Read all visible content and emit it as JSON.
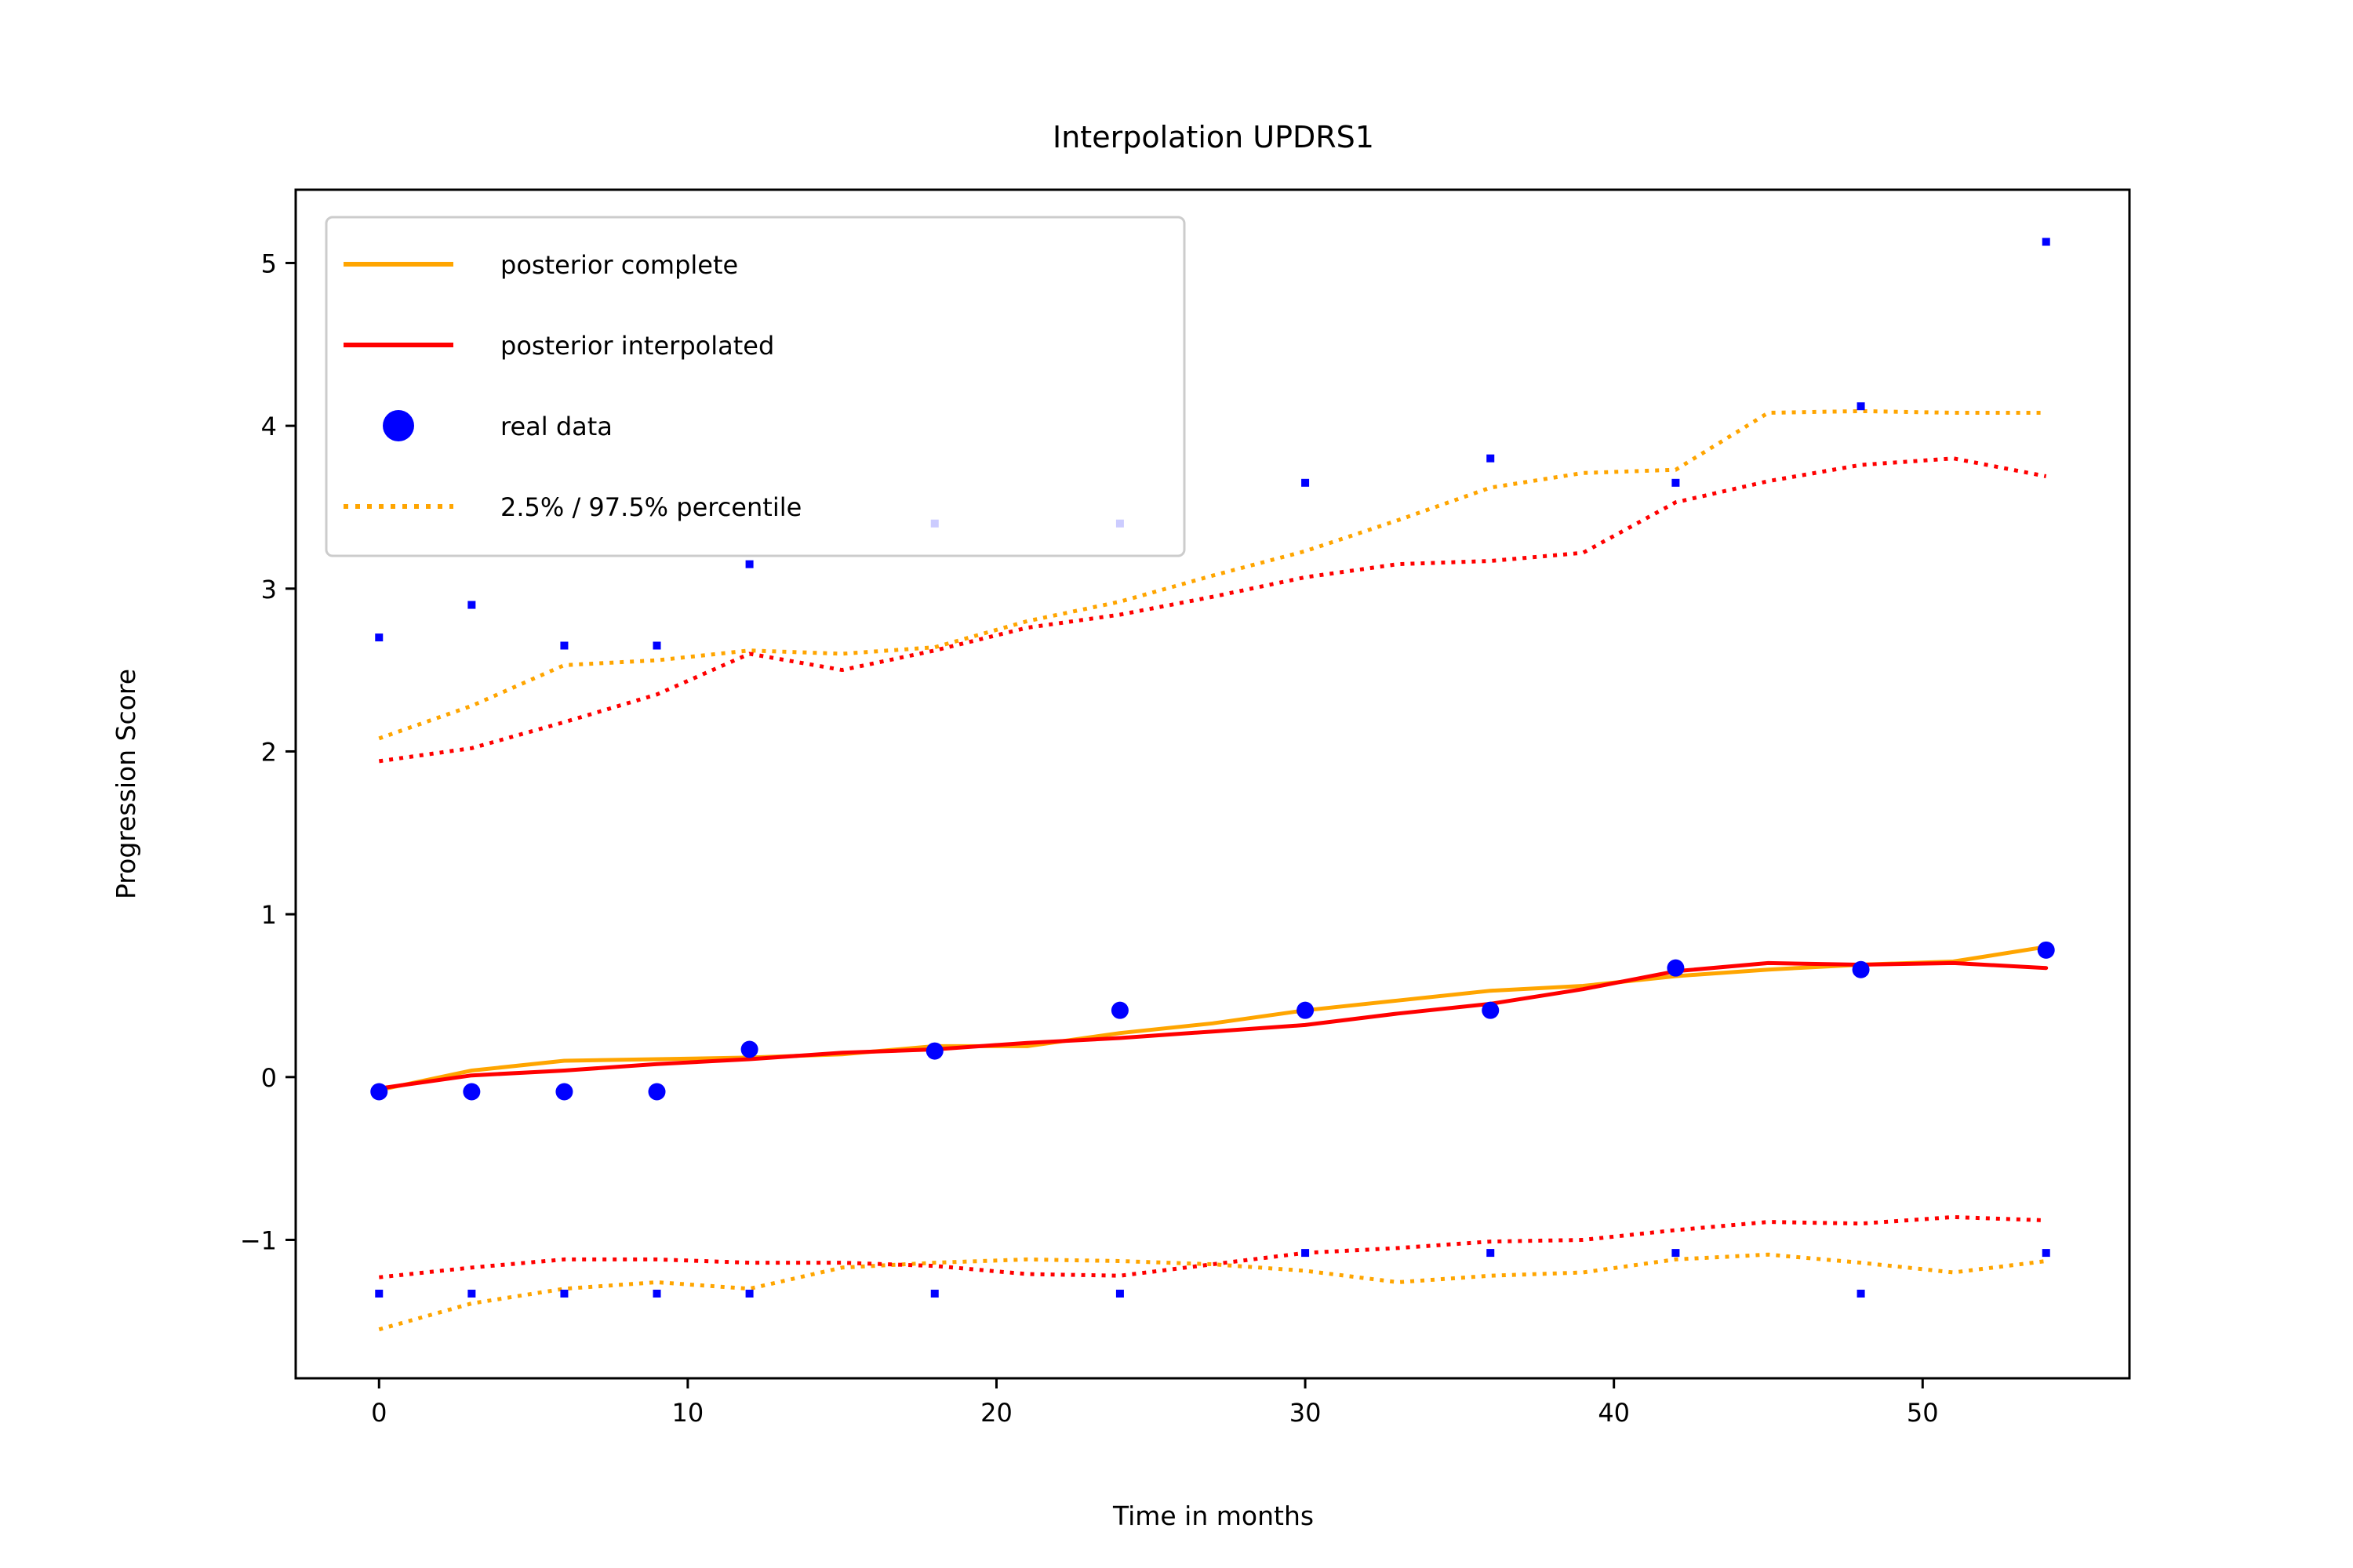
{
  "chart_data": {
    "type": "line",
    "title": "Interpolation UPDRS1",
    "xlabel": "Time in months",
    "ylabel": "Progression Score",
    "xlim": [
      -2.7,
      56.7
    ],
    "ylim": [
      -1.85,
      5.45
    ],
    "xticks": [
      0,
      10,
      20,
      30,
      40,
      50
    ],
    "yticks": [
      -1,
      0,
      1,
      2,
      3,
      4,
      5
    ],
    "xtick_labels": [
      "0",
      "10",
      "20",
      "30",
      "40",
      "50"
    ],
    "ytick_labels": [
      "−1",
      "0",
      "1",
      "2",
      "3",
      "4",
      "5"
    ],
    "grid": false,
    "legend_position": "top-left",
    "legend": [
      {
        "label": "posterior complete",
        "color": "#ffa500",
        "style": "solid"
      },
      {
        "label": "posterior interpolated",
        "color": "#ff0000",
        "style": "solid"
      },
      {
        "label": "real data",
        "color": "#0000ff",
        "style": "marker"
      },
      {
        "label": "2.5% / 97.5% percentile",
        "color": "#ffa500",
        "style": "dotted"
      }
    ],
    "series": [
      {
        "name": "posterior complete",
        "role": "mean",
        "color": "#ffa500",
        "style": "solid",
        "x": [
          0,
          3,
          6,
          9,
          12,
          15,
          18,
          21,
          24,
          27,
          30,
          33,
          36,
          39,
          42,
          45,
          48,
          51,
          54
        ],
        "y": [
          -0.08,
          0.04,
          0.1,
          0.11,
          0.12,
          0.14,
          0.19,
          0.19,
          0.27,
          0.33,
          0.41,
          0.47,
          0.53,
          0.56,
          0.62,
          0.66,
          0.69,
          0.71,
          0.8
        ]
      },
      {
        "name": "posterior interpolated",
        "role": "mean",
        "color": "#ff0000",
        "style": "solid",
        "x": [
          0,
          3,
          6,
          9,
          12,
          15,
          18,
          21,
          24,
          27,
          30,
          33,
          36,
          39,
          42,
          45,
          48,
          51,
          54
        ],
        "y": [
          -0.07,
          0.01,
          0.04,
          0.08,
          0.11,
          0.15,
          0.17,
          0.21,
          0.24,
          0.28,
          0.32,
          0.39,
          0.45,
          0.54,
          0.65,
          0.7,
          0.69,
          0.7,
          0.67
        ]
      },
      {
        "name": "2.5% / 97.5% percentile",
        "role": "band",
        "color": "#ffa500",
        "style": "dotted",
        "x": [
          0,
          3,
          6,
          9,
          12,
          15,
          18,
          21,
          24,
          27,
          30,
          33,
          36,
          39,
          42,
          45,
          48,
          51,
          54
        ],
        "y": [
          2.08,
          2.28,
          2.53,
          2.56,
          2.62,
          2.6,
          2.64,
          2.8,
          2.92,
          3.08,
          3.23,
          3.42,
          3.62,
          3.71,
          3.73,
          4.08,
          4.09,
          4.08,
          4.08
        ]
      },
      {
        "role": "band",
        "color": "#ffa500",
        "style": "dotted",
        "x": [
          0,
          3,
          6,
          9,
          12,
          15,
          18,
          21,
          24,
          27,
          30,
          33,
          36,
          39,
          42,
          45,
          48,
          51,
          54
        ],
        "y": [
          -1.55,
          -1.39,
          -1.3,
          -1.26,
          -1.3,
          -1.17,
          -1.14,
          -1.12,
          -1.13,
          -1.15,
          -1.19,
          -1.26,
          -1.22,
          -1.2,
          -1.12,
          -1.09,
          -1.14,
          -1.2,
          -1.13
        ]
      },
      {
        "role": "band",
        "color": "#ff0000",
        "style": "dotted",
        "x": [
          0,
          3,
          6,
          9,
          12,
          15,
          18,
          21,
          24,
          27,
          30,
          33,
          36,
          39,
          42,
          45,
          48,
          51,
          54
        ],
        "y": [
          1.94,
          2.02,
          2.18,
          2.35,
          2.6,
          2.5,
          2.62,
          2.76,
          2.84,
          2.95,
          3.07,
          3.15,
          3.17,
          3.22,
          3.53,
          3.66,
          3.76,
          3.8,
          3.69
        ]
      },
      {
        "role": "band",
        "color": "#ff0000",
        "style": "dotted",
        "x": [
          0,
          3,
          6,
          9,
          12,
          15,
          18,
          21,
          24,
          27,
          30,
          33,
          36,
          39,
          42,
          45,
          48,
          51,
          54
        ],
        "y": [
          -1.23,
          -1.17,
          -1.12,
          -1.12,
          -1.14,
          -1.14,
          -1.16,
          -1.21,
          -1.22,
          -1.15,
          -1.08,
          -1.05,
          -1.01,
          -1.0,
          -0.94,
          -0.89,
          -0.9,
          -0.86,
          -0.88
        ]
      },
      {
        "name": "real data",
        "role": "points",
        "color": "#0000ff",
        "style": "marker",
        "x": [
          0,
          3,
          6,
          9,
          12,
          18,
          24,
          30,
          36,
          42,
          48,
          54
        ],
        "y": [
          -0.09,
          -0.09,
          -0.09,
          -0.09,
          0.17,
          0.16,
          0.41,
          0.41,
          0.41,
          0.67,
          0.66,
          0.78
        ]
      },
      {
        "role": "upper-points",
        "color": "#0000ff",
        "style": "small-marker",
        "x": [
          0,
          3,
          6,
          9,
          12,
          18,
          24,
          30,
          36,
          42,
          48,
          54
        ],
        "y": [
          2.7,
          2.9,
          2.65,
          2.65,
          3.15,
          3.4,
          3.4,
          3.65,
          3.8,
          3.65,
          4.12,
          5.13
        ]
      },
      {
        "role": "lower-points",
        "color": "#0000ff",
        "style": "small-marker",
        "x": [
          0,
          3,
          6,
          9,
          12,
          18,
          24,
          30,
          36,
          42,
          48,
          54
        ],
        "y": [
          -1.33,
          -1.33,
          -1.33,
          -1.33,
          -1.33,
          -1.33,
          -1.33,
          -1.08,
          -1.08,
          -1.08,
          -1.33,
          -1.08
        ]
      }
    ]
  }
}
